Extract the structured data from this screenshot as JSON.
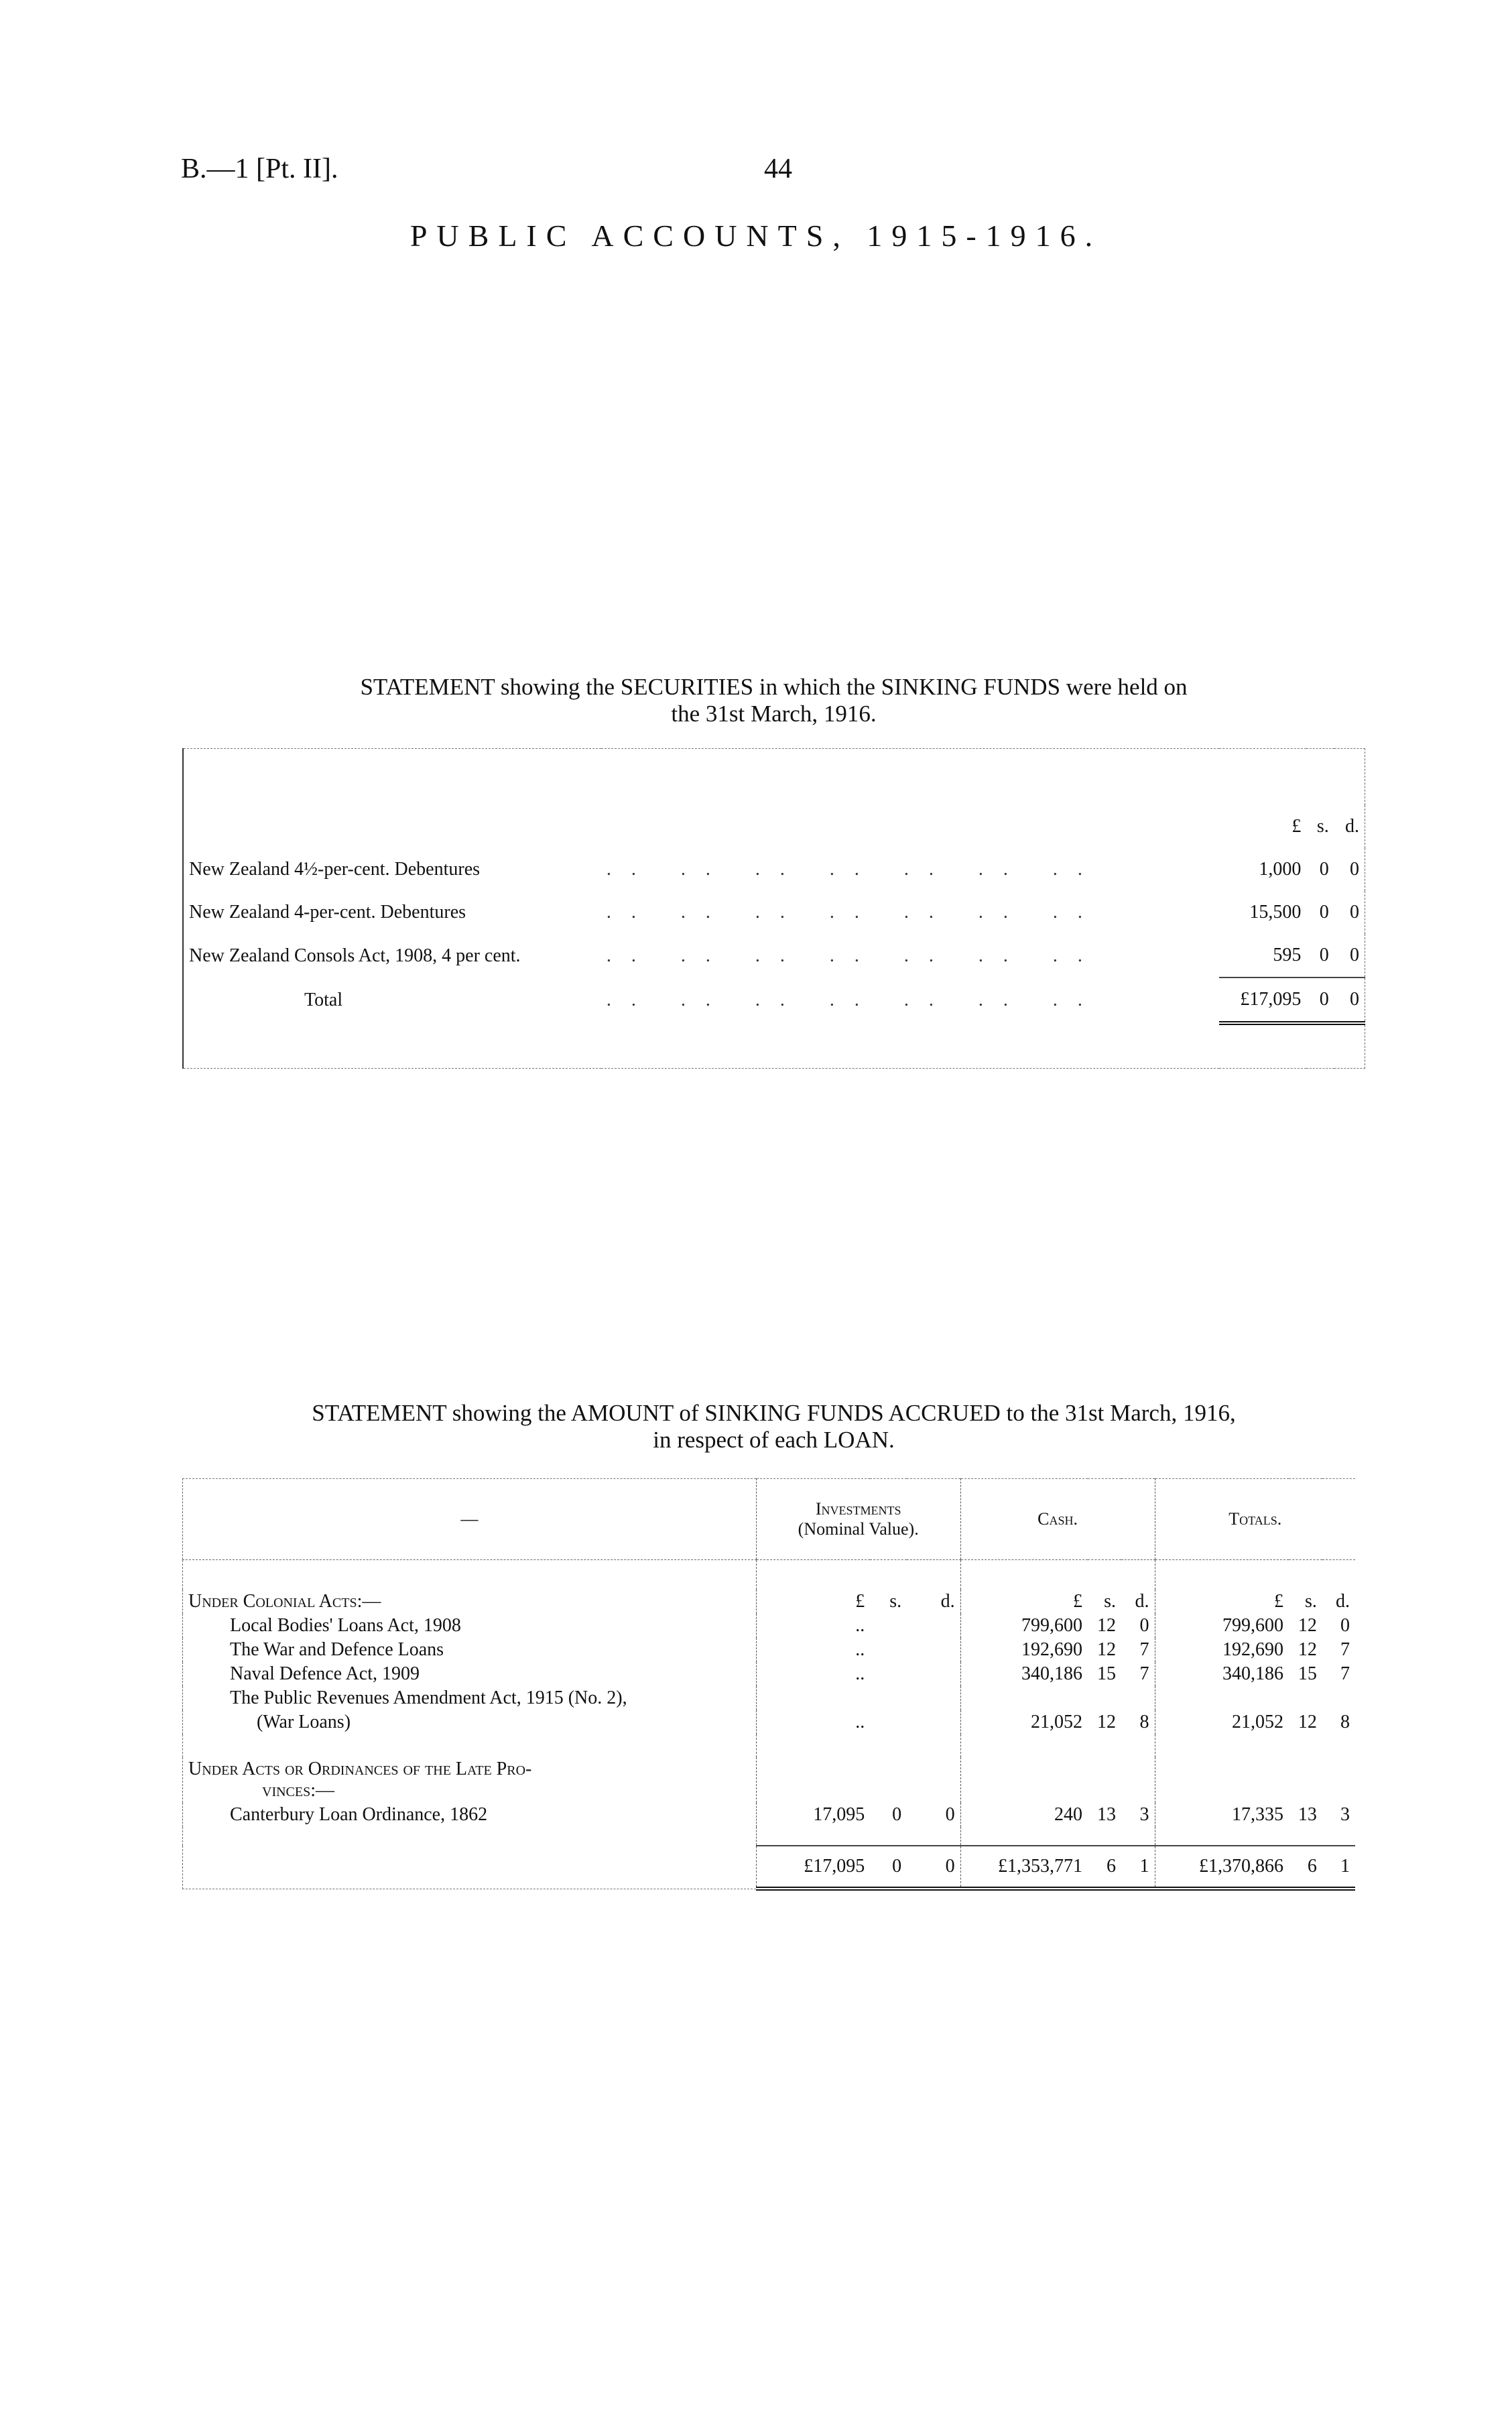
{
  "header": {
    "ref": "B.—1 [Pt. II].",
    "page_number": "44",
    "title": "PUBLIC ACCOUNTS, 1915-1916."
  },
  "statement1": {
    "title_line1": "STATEMENT showing the SECURITIES in which the SINKING FUNDS were held on",
    "title_line2": "the 31st March, 1916.",
    "units": [
      "£",
      "s.",
      "d."
    ],
    "rows": [
      {
        "label": "New Zealand 4½-per-cent. Debentures",
        "pounds": "1,000",
        "s": "0",
        "d": "0"
      },
      {
        "label": "New Zealand 4-per-cent. Debentures",
        "pounds": "15,500",
        "s": "0",
        "d": "0"
      },
      {
        "label": "New Zealand Consols Act, 1908, 4 per cent.",
        "pounds": "595",
        "s": "0",
        "d": "0"
      }
    ],
    "total": {
      "label": "Total",
      "pounds": "£17,095",
      "s": "0",
      "d": "0"
    }
  },
  "statement2": {
    "title_line1": "STATEMENT showing the AMOUNT of SINKING FUNDS ACCRUED to the 31st March, 1916,",
    "title_line2": "in respect of each LOAN.",
    "columns": {
      "blank": "—",
      "investments": "Investments",
      "investments_sub": "(Nominal Value).",
      "cash": "Cash.",
      "totals": "Totals."
    },
    "units": [
      "£",
      "s.",
      "d."
    ],
    "section1": {
      "heading": "Under Colonial Acts:—",
      "rows": [
        {
          "label": "Local Bodies' Loans Act, 1908",
          "inv": "..",
          "cash": "799,600",
          "cs": "12",
          "cd": "0",
          "tot": "799,600",
          "ts": "12",
          "td": "0"
        },
        {
          "label": "The War and Defence Loans",
          "inv": "..",
          "cash": "192,690",
          "cs": "12",
          "cd": "7",
          "tot": "192,690",
          "ts": "12",
          "td": "7"
        },
        {
          "label": "Naval Defence Act, 1909",
          "inv": "..",
          "cash": "340,186",
          "cs": "15",
          "cd": "7",
          "tot": "340,186",
          "ts": "15",
          "td": "7"
        },
        {
          "label": "The Public Revenues Amendment Act, 1915 (No. 2),",
          "label2": "(War Loans)",
          "inv": "..",
          "cash": "21,052",
          "cs": "12",
          "cd": "8",
          "tot": "21,052",
          "ts": "12",
          "td": "8"
        }
      ]
    },
    "section2": {
      "heading": "Under Acts or Ordinances of the Late Pro-",
      "heading2": "vinces:—",
      "rows": [
        {
          "label": "Canterbury Loan Ordinance, 1862",
          "inv": "17,095",
          "is": "0",
          "id": "0",
          "cash": "240",
          "cs": "13",
          "cd": "3",
          "tot": "17,335",
          "ts": "13",
          "td": "3"
        }
      ]
    },
    "totals": {
      "inv": "£17,095",
      "is": "0",
      "id": "0",
      "cash": "£1,353,771",
      "cs": "6",
      "cd": "1",
      "tot": "£1,370,866",
      "ts": "6",
      "td": "1"
    }
  }
}
